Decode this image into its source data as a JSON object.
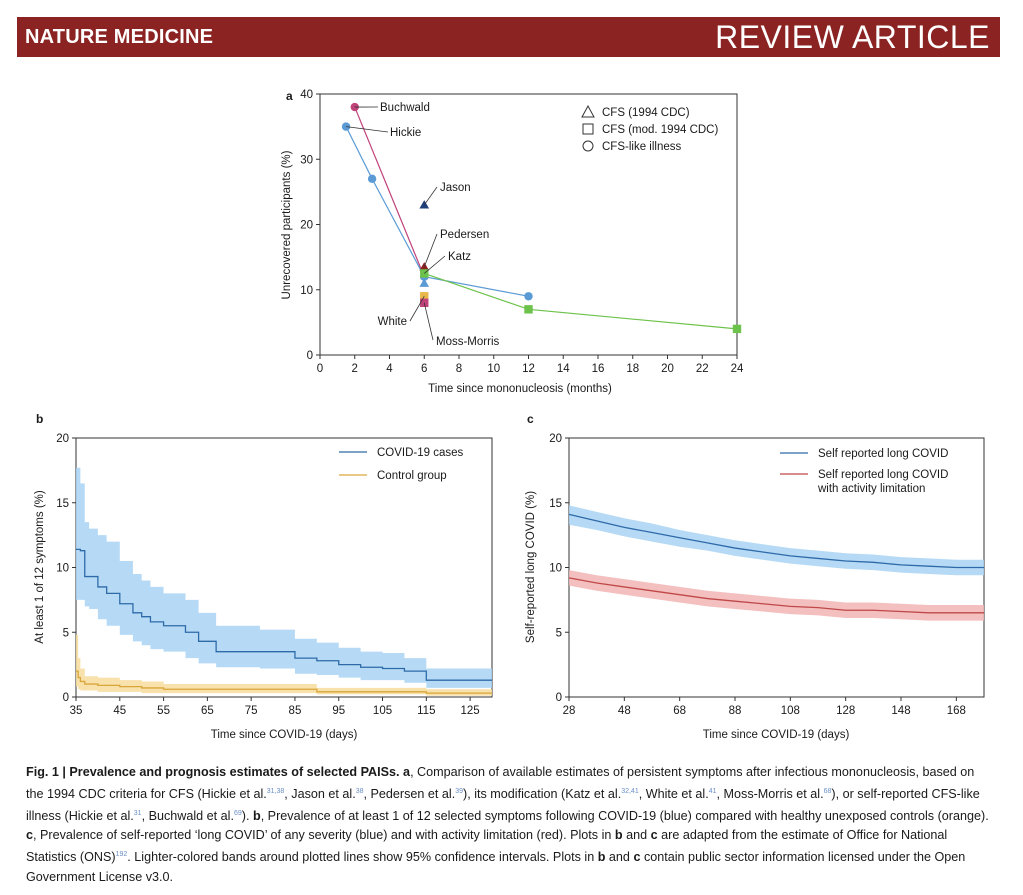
{
  "header": {
    "journal": "NATURE MEDICINE",
    "article_type": "REVIEW ARTICLE"
  },
  "colors": {
    "header_bg": "#8b2323",
    "blue": "#5b9bd5",
    "blue_line": "#2e6aa8",
    "blue_band": "#a9d4f5",
    "green": "#6cc24a",
    "magenta": "#c0427a",
    "dark_navy": "#1f3f7a",
    "tan": "#e8b84b",
    "red_band": "#f2b4b4",
    "red_line": "#c04848",
    "orange_band": "#f7dc9c",
    "orange_line": "#d9a63a"
  },
  "chart_data": [
    {
      "panel": "a",
      "type": "scatter",
      "xlabel": "Time since mononucleosis (months)",
      "ylabel": "Unrecovered participants (%)",
      "xlim": [
        0,
        24
      ],
      "ylim": [
        0,
        40
      ],
      "xticks": [
        0,
        2,
        4,
        6,
        8,
        10,
        12,
        14,
        16,
        18,
        20,
        22,
        24
      ],
      "yticks": [
        0,
        10,
        20,
        30,
        40
      ],
      "legend": [
        {
          "label": "CFS (1994 CDC)",
          "marker": "triangle"
        },
        {
          "label": "CFS (mod. 1994 CDC)",
          "marker": "square"
        },
        {
          "label": "CFS-like illness",
          "marker": "circle"
        }
      ],
      "series": [
        {
          "name": "Buchwald",
          "marker": "circle",
          "color": "#c0427a",
          "points": [
            [
              2,
              38
            ],
            [
              6,
              12
            ]
          ]
        },
        {
          "name": "Hickie",
          "marker": "circle",
          "color": "#5b9bd5",
          "points": [
            [
              1.5,
              35
            ],
            [
              3,
              27
            ],
            [
              6,
              12
            ],
            [
              12,
              9
            ]
          ]
        },
        {
          "name": "Jason",
          "marker": "triangle",
          "color": "#1f3f7a",
          "points": [
            [
              6,
              23
            ]
          ]
        },
        {
          "name": "Pedersen",
          "marker": "triangle",
          "color": "#8b2020",
          "points": [
            [
              6,
              13.5
            ]
          ]
        },
        {
          "name": "Katz",
          "marker": "square",
          "color": "#6cc24a",
          "points": [
            [
              6,
              12.5
            ],
            [
              12,
              7
            ],
            [
              24,
              4
            ]
          ]
        },
        {
          "name": "White",
          "marker": "triangle",
          "color": "#5b9bd5",
          "points": [
            [
              6,
              11
            ]
          ]
        },
        {
          "name": "Moss-Morris",
          "marker": "square",
          "color": "#e8b84b",
          "points": [
            [
              6,
              9
            ]
          ]
        },
        {
          "name": "Moss-Morris",
          "marker": "square",
          "color": "#c0427a",
          "points": [
            [
              6,
              8
            ]
          ]
        }
      ]
    },
    {
      "panel": "b",
      "type": "line",
      "xlabel": "Time since COVID-19 (days)",
      "ylabel": "At least 1 of 12 symptoms (%)",
      "xlim": [
        35,
        130
      ],
      "ylim": [
        0,
        20
      ],
      "xticks": [
        35,
        45,
        55,
        65,
        75,
        85,
        95,
        105,
        115,
        125
      ],
      "yticks": [
        0,
        5,
        10,
        15,
        20
      ],
      "series": [
        {
          "name": "COVID-19 cases",
          "color": "#2e6aa8",
          "band_color": "#a9d4f5",
          "x": [
            35,
            36,
            37,
            38,
            40,
            42,
            45,
            48,
            50,
            52,
            55,
            60,
            63,
            67,
            73,
            77,
            85,
            90,
            95,
            100,
            105,
            110,
            115,
            120,
            130
          ],
          "y": [
            11.4,
            11.3,
            9.3,
            9.3,
            8.5,
            8.0,
            7.2,
            6.5,
            6.2,
            5.8,
            5.5,
            5.0,
            4.3,
            3.5,
            3.5,
            3.5,
            3.0,
            2.8,
            2.5,
            2.3,
            2.2,
            2.0,
            1.3,
            1.3,
            1.3
          ],
          "upper": [
            17.7,
            16.5,
            13.5,
            13.0,
            12.5,
            12.0,
            10.5,
            9.5,
            9.0,
            8.5,
            8.0,
            7.5,
            6.5,
            5.5,
            5.5,
            5.2,
            4.5,
            4.2,
            3.8,
            3.5,
            3.4,
            3.0,
            2.2,
            2.2,
            2.2
          ],
          "lower": [
            7.5,
            7.5,
            7.0,
            6.8,
            6.0,
            5.5,
            4.8,
            4.3,
            4.0,
            3.7,
            3.5,
            3.0,
            2.6,
            2.3,
            2.3,
            2.2,
            1.8,
            1.7,
            1.5,
            1.3,
            1.3,
            1.1,
            0.7,
            0.7,
            0.7
          ]
        },
        {
          "name": "Control group",
          "color": "#d9a63a",
          "band_color": "#f7dc9c",
          "x": [
            35,
            35.5,
            36,
            37,
            40,
            45,
            50,
            55,
            60,
            70,
            85,
            90,
            100,
            115,
            130
          ],
          "y": [
            2.0,
            1.5,
            1.2,
            1.0,
            0.9,
            0.8,
            0.7,
            0.6,
            0.6,
            0.6,
            0.6,
            0.4,
            0.4,
            0.3,
            0.3
          ],
          "upper": [
            4.8,
            3.0,
            2.2,
            1.6,
            1.5,
            1.3,
            1.2,
            1.0,
            1.0,
            1.0,
            1.0,
            0.7,
            0.7,
            0.6,
            0.6
          ],
          "lower": [
            0.8,
            0.6,
            0.5,
            0.5,
            0.4,
            0.4,
            0.3,
            0.3,
            0.3,
            0.3,
            0.3,
            0.2,
            0.2,
            0.1,
            0.1
          ]
        }
      ]
    },
    {
      "panel": "c",
      "type": "line",
      "xlabel": "Time since COVID-19 (days)",
      "ylabel": "Self-reported long COVID (%)",
      "xlim": [
        28,
        178
      ],
      "ylim": [
        0,
        20
      ],
      "xticks": [
        28,
        48,
        68,
        88,
        108,
        128,
        148,
        168
      ],
      "yticks": [
        0,
        5,
        10,
        15,
        20
      ],
      "series": [
        {
          "name": "Self reported long COVID",
          "color": "#2e6aa8",
          "band_color": "#a9d4f5",
          "x": [
            28,
            38,
            48,
            58,
            68,
            78,
            88,
            98,
            108,
            118,
            128,
            138,
            148,
            158,
            168,
            178
          ],
          "y": [
            14.1,
            13.6,
            13.1,
            12.7,
            12.3,
            11.9,
            11.5,
            11.2,
            10.9,
            10.7,
            10.5,
            10.4,
            10.2,
            10.1,
            10.0,
            10.0
          ],
          "upper": [
            14.8,
            14.3,
            13.8,
            13.4,
            12.9,
            12.5,
            12.1,
            11.8,
            11.5,
            11.3,
            11.1,
            11.0,
            10.8,
            10.7,
            10.6,
            10.6
          ],
          "lower": [
            13.3,
            12.9,
            12.4,
            12.0,
            11.6,
            11.3,
            10.9,
            10.6,
            10.3,
            10.1,
            9.9,
            9.8,
            9.6,
            9.5,
            9.4,
            9.4
          ]
        },
        {
          "name": "Self reported long COVID with activity limitation",
          "color": "#c04848",
          "band_color": "#f2b4b4",
          "x": [
            28,
            38,
            48,
            58,
            68,
            78,
            88,
            98,
            108,
            118,
            128,
            138,
            148,
            158,
            168,
            178
          ],
          "y": [
            9.2,
            8.8,
            8.5,
            8.2,
            7.9,
            7.6,
            7.4,
            7.2,
            7.0,
            6.9,
            6.7,
            6.7,
            6.6,
            6.5,
            6.5,
            6.5
          ],
          "upper": [
            9.8,
            9.4,
            9.1,
            8.8,
            8.5,
            8.2,
            8.0,
            7.8,
            7.6,
            7.5,
            7.3,
            7.3,
            7.2,
            7.1,
            7.1,
            7.1
          ],
          "lower": [
            8.6,
            8.2,
            7.9,
            7.6,
            7.3,
            7.0,
            6.8,
            6.6,
            6.4,
            6.3,
            6.1,
            6.1,
            6.0,
            5.9,
            5.9,
            5.9
          ]
        }
      ]
    }
  ],
  "caption": {
    "fig_label": "Fig. 1 | Prevalence and prognosis estimates of selected PAISs.",
    "a_label": "a",
    "a_text": ", Comparison of available estimates of persistent symptoms after infectious mononucleosis, based on the 1994 CDC criteria for CFS (Hickie et al.",
    "ref_hickie": "31,38",
    "a_text2": ", Jason et al.",
    "ref_jason": "38",
    "a_text3": ", Pedersen et al.",
    "ref_pedersen": "39",
    "a_text4": "), its modification (Katz et al.",
    "ref_katz": "32,41",
    "a_text5": ", White et al.",
    "ref_white": "41",
    "a_text6": ", Moss-Morris et al.",
    "ref_moss": "68",
    "a_text7": "), or self-reported CFS-like illness (Hickie et al.",
    "ref_hickie2": "31",
    "a_text8": ", Buchwald et al.",
    "ref_buchwald": "69",
    "a_text9": "). ",
    "b_label": "b",
    "b_text": ", Prevalence of at least 1 of 12 selected symptoms following COVID-19 (blue) compared with healthy unexposed controls (orange). ",
    "c_label": "c",
    "c_text": ", Prevalence of self-reported ‘long COVID’ of any severity (blue) and with activity limitation (red). Plots in ",
    "b2": "b",
    "and1": " and ",
    "c2": "c",
    "text_ons": " are adapted from the estimate of Office for National Statistics (ONS)",
    "ref_ons": "192",
    "text_end": ". Lighter-colored bands around plotted lines show 95% confidence intervals. Plots in ",
    "b3": "b",
    "and2": " and ",
    "c3": "c",
    "text_final": " contain public sector information licensed under the Open Government License v3.0."
  }
}
